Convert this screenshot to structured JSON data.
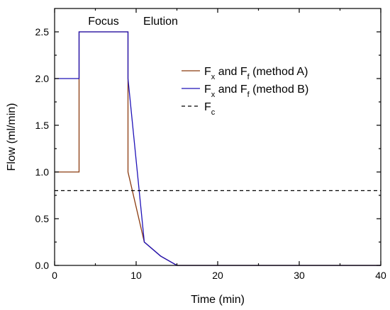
{
  "chart_data": {
    "type": "line",
    "xlabel": "Time (min)",
    "ylabel": "Flow (ml/min)",
    "xlim": [
      0,
      40
    ],
    "ylim": [
      0,
      2.75
    ],
    "x_ticks": [
      0,
      10,
      20,
      30,
      40
    ],
    "x_tick_labels": [
      "0",
      "10",
      "20",
      "30",
      "40"
    ],
    "y_ticks": [
      0,
      0.5,
      1.0,
      1.5,
      2.0,
      2.5
    ],
    "y_tick_labels": [
      "0.0",
      "0.5",
      "1.0",
      "1.5",
      "2.0",
      "2.5"
    ],
    "grid": false,
    "legend_position": "right",
    "annotations": [
      {
        "text": "Focus",
        "x": 6,
        "y": 2.62
      },
      {
        "text": "Elution",
        "x": 13,
        "y": 2.62
      }
    ],
    "series": [
      {
        "name_main": "F",
        "name_sub": "x",
        "name_mid": " and F",
        "name_sub2": "f",
        "name_tail": " (method A)",
        "color": "#8B3A0F",
        "dash": "",
        "x": [
          0,
          3,
          3,
          9,
          9,
          11,
          13,
          15,
          40
        ],
        "y": [
          1.0,
          1.0,
          2.5,
          2.5,
          1.0,
          0.25,
          0.1,
          0.0,
          0.0
        ]
      },
      {
        "name_main": "F",
        "name_sub": "x",
        "name_mid": " and F",
        "name_sub2": "f",
        "name_tail": " (method B)",
        "color": "#1F12B8",
        "dash": "",
        "x": [
          0,
          3,
          3,
          9,
          9,
          11,
          13,
          15,
          40
        ],
        "y": [
          2.0,
          2.0,
          2.5,
          2.5,
          2.0,
          0.25,
          0.1,
          0.0,
          0.0
        ]
      },
      {
        "name_main": "F",
        "name_sub": "c",
        "name_mid": "",
        "name_sub2": "",
        "name_tail": "",
        "color": "#000000",
        "dash": "5,4",
        "x": [
          0,
          40
        ],
        "y": [
          0.8,
          0.8
        ]
      }
    ]
  }
}
